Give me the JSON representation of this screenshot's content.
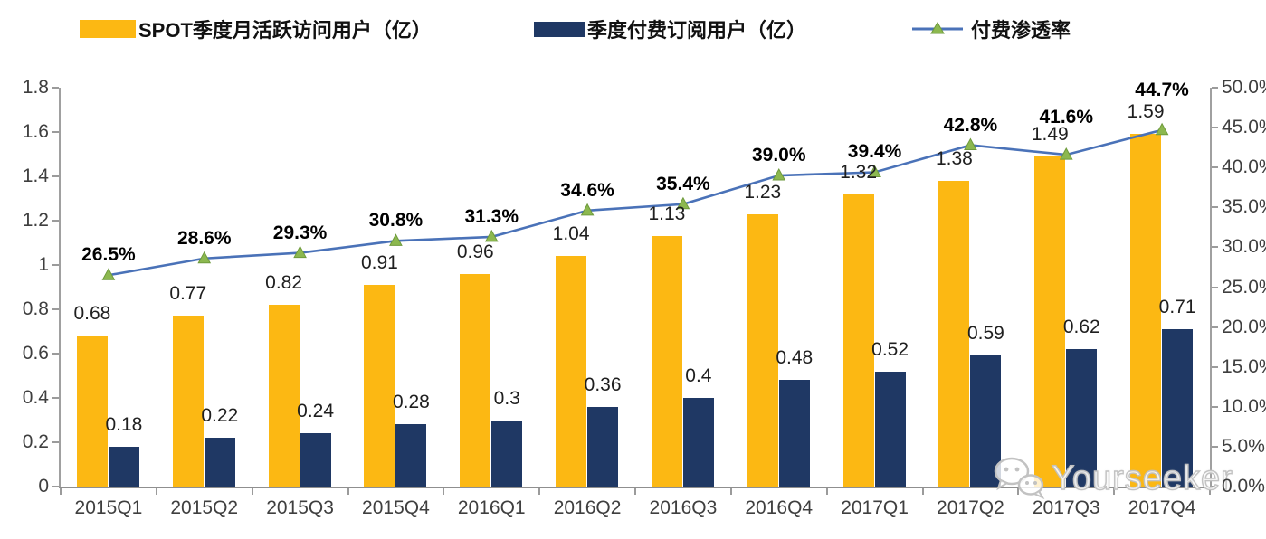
{
  "legend": {
    "mau_label": "SPOT季度月活跃访问用户（亿）",
    "subs_label": "季度付费订阅用户（亿）",
    "penetration_label": "付费渗透率"
  },
  "watermark": {
    "text": "Yourseeker"
  },
  "colors": {
    "mau_bar": "#FCB813",
    "subs_bar": "#1F3864",
    "penetration_line": "#4A72B8",
    "penetration_marker": "#8CB84F",
    "axis": "#A0A0A0"
  },
  "chart_data": {
    "type": "combo_bar_line",
    "legend_position": "top",
    "grid": false,
    "categories": [
      "2015Q1",
      "2015Q2",
      "2015Q3",
      "2015Q4",
      "2016Q1",
      "2016Q2",
      "2016Q3",
      "2016Q4",
      "2017Q1",
      "2017Q2",
      "2017Q3",
      "2017Q4"
    ],
    "series": [
      {
        "name": "SPOT季度月活跃访问用户（亿）",
        "type": "bar",
        "axis": "left",
        "color": "#FCB813",
        "values": [
          0.68,
          0.77,
          0.82,
          0.91,
          0.96,
          1.04,
          1.13,
          1.23,
          1.32,
          1.38,
          1.49,
          1.59
        ],
        "labels": [
          "0.68",
          "0.77",
          "0.82",
          "0.91",
          "0.96",
          "1.04",
          "1.13",
          "1.23",
          "1.32",
          "1.38",
          "1.49",
          "1.59"
        ]
      },
      {
        "name": "季度付费订阅用户（亿）",
        "type": "bar",
        "axis": "left",
        "color": "#1F3864",
        "values": [
          0.18,
          0.22,
          0.24,
          0.28,
          0.3,
          0.36,
          0.4,
          0.48,
          0.52,
          0.59,
          0.62,
          0.71
        ],
        "labels": [
          "0.18",
          "0.22",
          "0.24",
          "0.28",
          "0.3",
          "0.36",
          "0.4",
          "0.48",
          "0.52",
          "0.59",
          "0.62",
          "0.71"
        ]
      },
      {
        "name": "付费渗透率",
        "type": "line",
        "axis": "right",
        "color": "#4A72B8",
        "marker_color": "#8CB84F",
        "values": [
          26.5,
          28.6,
          29.3,
          30.8,
          31.3,
          34.6,
          35.4,
          39.0,
          39.4,
          42.8,
          41.6,
          44.7
        ],
        "labels": [
          "26.5%",
          "28.6%",
          "29.3%",
          "30.8%",
          "31.3%",
          "34.6%",
          "35.4%",
          "39.0%",
          "39.4%",
          "42.8%",
          "41.6%",
          "44.7%"
        ]
      }
    ],
    "left_axis": {
      "min": 0,
      "max": 1.8,
      "step": 0.2,
      "ticks": [
        "0",
        "0.2",
        "0.4",
        "0.6",
        "0.8",
        "1",
        "1.2",
        "1.4",
        "1.6",
        "1.8"
      ]
    },
    "right_axis": {
      "min": 0,
      "max": 50,
      "step": 5,
      "ticks": [
        "0.0%",
        "5.0%",
        "10.0%",
        "15.0%",
        "20.0%",
        "25.0%",
        "30.0%",
        "35.0%",
        "40.0%",
        "45.0%",
        "50.0%"
      ]
    }
  }
}
